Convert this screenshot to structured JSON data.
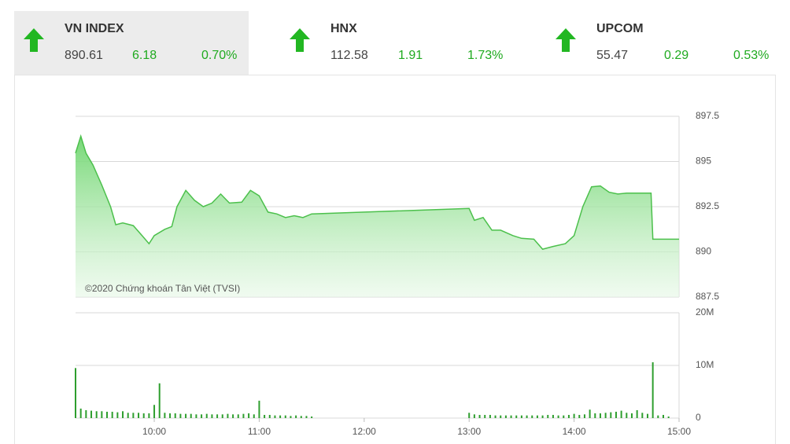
{
  "indices": [
    {
      "name": "VN INDEX",
      "value": "890.61",
      "change": "6.18",
      "percent": "0.70%"
    },
    {
      "name": "HNX",
      "value": "112.58",
      "change": "1.91",
      "percent": "1.73%"
    },
    {
      "name": "UPCOM",
      "value": "55.47",
      "change": "0.29",
      "percent": "0.53%"
    }
  ],
  "chart_data": [
    {
      "type": "area",
      "annotation": "©2020 Chứng khoán Tân Việt (TVSI)",
      "color": "#4cc04c",
      "x": [
        "09:15",
        "09:18",
        "09:21",
        "09:25",
        "09:30",
        "09:35",
        "09:38",
        "09:42",
        "09:48",
        "09:53",
        "09:57",
        "10:00",
        "10:06",
        "10:10",
        "10:13",
        "10:18",
        "10:23",
        "10:28",
        "10:33",
        "10:38",
        "10:43",
        "10:50",
        "10:55",
        "11:00",
        "11:05",
        "11:10",
        "11:15",
        "11:20",
        "11:25",
        "11:30",
        "13:00",
        "13:03",
        "13:08",
        "13:13",
        "13:18",
        "13:25",
        "13:30",
        "13:37",
        "13:42",
        "13:48",
        "13:55",
        "14:00",
        "14:05",
        "14:10",
        "14:15",
        "14:20",
        "14:25",
        "14:30",
        "14:44",
        "14:45",
        "15:00"
      ],
      "values": [
        895.46,
        896.4,
        895.46,
        894.8,
        893.7,
        892.5,
        891.5,
        891.6,
        891.45,
        890.9,
        890.45,
        890.9,
        891.25,
        891.4,
        892.5,
        893.4,
        892.85,
        892.5,
        892.7,
        893.2,
        892.7,
        892.75,
        893.4,
        893.1,
        892.2,
        892.1,
        891.9,
        892.0,
        891.9,
        892.1,
        892.4,
        891.75,
        891.9,
        891.2,
        891.2,
        890.9,
        890.75,
        890.7,
        890.15,
        890.3,
        890.45,
        890.9,
        892.5,
        893.6,
        893.65,
        893.3,
        893.2,
        893.25,
        893.25,
        890.7,
        890.7
      ],
      "xlim": [
        "09:15",
        "15:00"
      ],
      "ylim": [
        887.5,
        897.5
      ],
      "yticks": [
        887.5,
        890,
        892.5,
        895,
        897.5
      ],
      "grid": true
    },
    {
      "type": "bar",
      "color": "#2e9e2e",
      "x": [
        "09:15",
        "09:18",
        "09:21",
        "09:24",
        "09:27",
        "09:30",
        "09:33",
        "09:36",
        "09:39",
        "09:42",
        "09:45",
        "09:48",
        "09:51",
        "09:54",
        "09:57",
        "10:00",
        "10:03",
        "10:06",
        "10:09",
        "10:12",
        "10:15",
        "10:18",
        "10:21",
        "10:24",
        "10:27",
        "10:30",
        "10:33",
        "10:36",
        "10:39",
        "10:42",
        "10:45",
        "10:48",
        "10:51",
        "10:54",
        "10:57",
        "11:00",
        "11:03",
        "11:06",
        "11:09",
        "11:12",
        "11:15",
        "11:18",
        "11:21",
        "11:24",
        "11:27",
        "11:30",
        "13:00",
        "13:03",
        "13:06",
        "13:09",
        "13:12",
        "13:15",
        "13:18",
        "13:21",
        "13:24",
        "13:27",
        "13:30",
        "13:33",
        "13:36",
        "13:39",
        "13:42",
        "13:45",
        "13:48",
        "13:51",
        "13:54",
        "13:57",
        "14:00",
        "14:03",
        "14:06",
        "14:09",
        "14:12",
        "14:15",
        "14:18",
        "14:21",
        "14:24",
        "14:27",
        "14:30",
        "14:33",
        "14:36",
        "14:39",
        "14:42",
        "14:45",
        "14:48",
        "14:51",
        "14:54"
      ],
      "values": [
        9.5,
        1.8,
        1.5,
        1.4,
        1.3,
        1.3,
        1.2,
        1.2,
        1.1,
        1.3,
        1.0,
        1.0,
        1.0,
        0.9,
        0.9,
        2.5,
        6.6,
        1.0,
        0.9,
        0.9,
        0.8,
        0.8,
        0.8,
        0.7,
        0.7,
        0.8,
        0.7,
        0.7,
        0.7,
        0.8,
        0.7,
        0.7,
        0.8,
        0.9,
        0.7,
        3.3,
        0.6,
        0.6,
        0.5,
        0.5,
        0.5,
        0.4,
        0.5,
        0.4,
        0.4,
        0.3,
        1.0,
        0.7,
        0.6,
        0.6,
        0.6,
        0.5,
        0.5,
        0.5,
        0.5,
        0.5,
        0.5,
        0.5,
        0.5,
        0.5,
        0.5,
        0.6,
        0.6,
        0.5,
        0.5,
        0.6,
        0.8,
        0.6,
        0.7,
        1.6,
        0.9,
        0.9,
        1.0,
        1.1,
        1.2,
        1.4,
        1.0,
        0.9,
        1.5,
        1.0,
        0.8,
        10.6,
        0.5,
        0.6,
        0.3
      ],
      "xlim": [
        "09:15",
        "15:00"
      ],
      "ylim": [
        0,
        20
      ],
      "yticks": [
        0,
        {
          "value": 10,
          "label": "10M"
        },
        {
          "value": 20,
          "label": "20M"
        }
      ],
      "xticks": [
        "10:00",
        "11:00",
        "12:00",
        "13:00",
        "14:00",
        "15:00"
      ],
      "grid": true
    }
  ]
}
